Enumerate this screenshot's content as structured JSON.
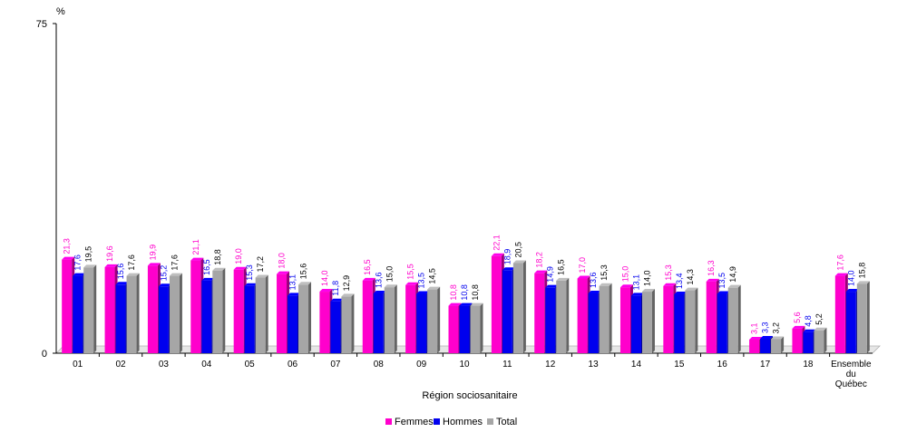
{
  "chart_data": {
    "type": "bar",
    "y_unit": "%",
    "xlabel": "Région sociosanitaire",
    "ylim": [
      0,
      75
    ],
    "y_ticks": [
      "0",
      "75"
    ],
    "grid": false,
    "legend_position": "bottom",
    "categories": [
      "01",
      "02",
      "03",
      "04",
      "05",
      "06",
      "07",
      "08",
      "09",
      "10",
      "11",
      "12",
      "13",
      "14",
      "15",
      "16",
      "17",
      "18",
      [
        "Ensemble",
        "du",
        "Québec"
      ]
    ],
    "series": [
      {
        "name": "Femmes",
        "color": "#ff00cc",
        "values": [
          21.3,
          19.6,
          19.9,
          21.1,
          19.0,
          18.0,
          14.0,
          16.5,
          15.5,
          10.8,
          22.1,
          18.2,
          17.0,
          15.0,
          15.3,
          16.3,
          3.1,
          5.6,
          17.6
        ],
        "labels": [
          "21,3",
          "19,6",
          "19,9",
          "21,1",
          "19,0",
          "18,0",
          "14,0",
          "16,5",
          "15,5",
          "10,8",
          "22,1",
          "18,2",
          "17,0",
          "15,0",
          "15,3",
          "16,3",
          "3,1",
          "5,6",
          "17,6"
        ]
      },
      {
        "name": "Hommes",
        "color": "#0000ee",
        "values": [
          17.6,
          15.6,
          15.2,
          16.5,
          15.3,
          13.1,
          11.8,
          13.6,
          13.5,
          10.8,
          18.9,
          14.9,
          13.6,
          13.1,
          13.4,
          13.5,
          3.3,
          4.8,
          14.0
        ],
        "labels": [
          "17,6",
          "15,6",
          "15,2",
          "16,5",
          "15,3",
          "13,1",
          "11,8",
          "13,6",
          "13,5",
          "10,8",
          "18,9",
          "14,9",
          "13,6",
          "13,1",
          "13,4",
          "13,5",
          "3,3",
          "4,8",
          "14,0"
        ]
      },
      {
        "name": "Total",
        "color": "#a6a6a6",
        "values": [
          19.5,
          17.6,
          17.6,
          18.8,
          17.2,
          15.6,
          12.9,
          15.0,
          14.5,
          10.8,
          20.5,
          16.5,
          15.3,
          14.0,
          14.3,
          14.9,
          3.2,
          5.2,
          15.8
        ],
        "labels": [
          "19,5",
          "17,6",
          "17,6",
          "18,8",
          "17,2",
          "15,6",
          "12,9",
          "15,0",
          "14,5",
          "10,8",
          "20,5",
          "16,5",
          "15,3",
          "14,0",
          "14,3",
          "14,9",
          "3,2",
          "5,2",
          "15,8"
        ]
      }
    ]
  }
}
